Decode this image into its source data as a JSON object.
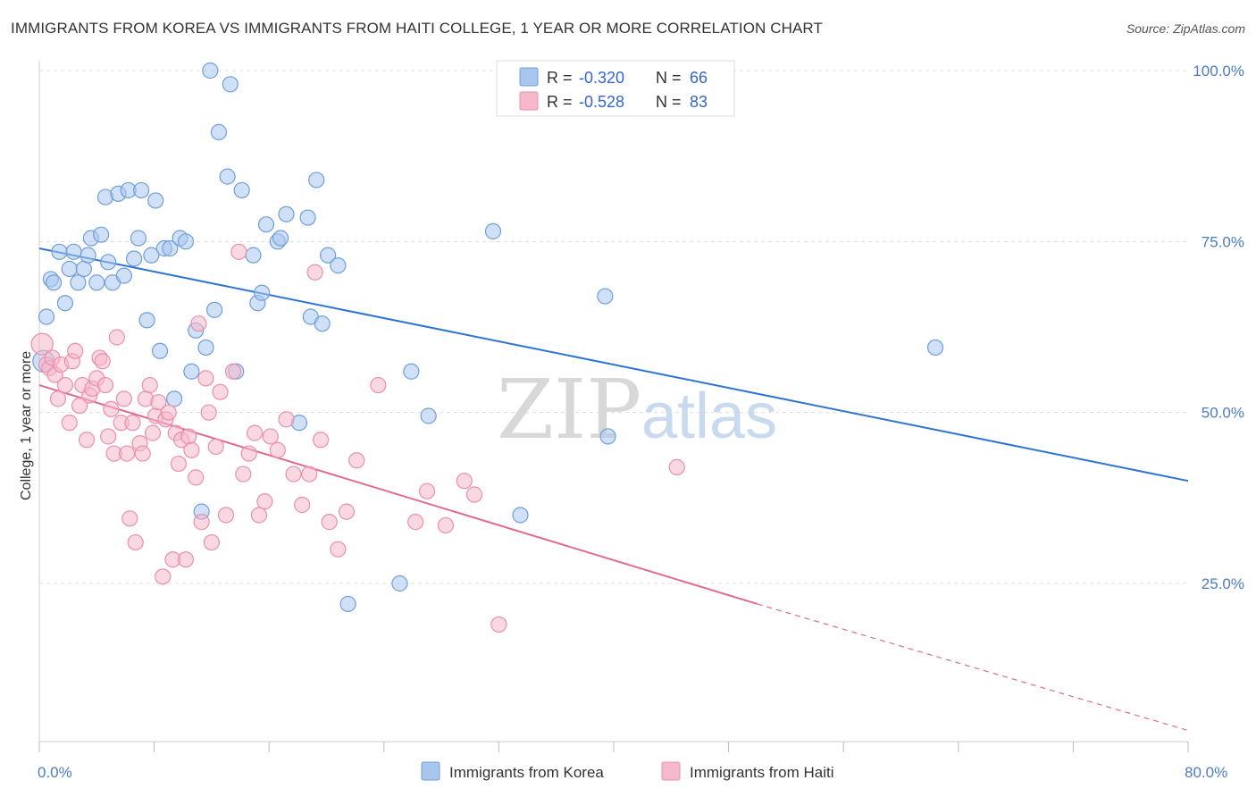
{
  "title": "IMMIGRANTS FROM KOREA VS IMMIGRANTS FROM HAITI COLLEGE, 1 YEAR OR MORE CORRELATION CHART",
  "source": "Source: ZipAtlas.com",
  "watermark": {
    "zip": "ZIP",
    "atlas": "atlas"
  },
  "colors": {
    "korea_fill": "#a9c6ef",
    "korea_stroke": "#6f9fd8",
    "korea_line": "#2f74d0",
    "haiti_fill": "#f6b8cb",
    "haiti_stroke": "#ea8fad",
    "haiti_line": "#e06a94",
    "axis_label": "#4a7cc7",
    "grid": "#dddddd"
  },
  "legend": {
    "korea": {
      "r_label": "R = ",
      "r_value": "-0.320",
      "n_label": "N = ",
      "n_value": "66"
    },
    "haiti": {
      "r_label": "R = ",
      "r_value": "-0.528",
      "n_label": "N = ",
      "n_value": "83"
    }
  },
  "chart_data": {
    "type": "scatter",
    "xlabel": "",
    "ylabel": "College, 1 year or more",
    "xlim": [
      0,
      80
    ],
    "ylim": [
      0,
      105
    ],
    "x_tick_labels": [
      "0.0%",
      "80.0%"
    ],
    "y_ticks": [
      25,
      50,
      75,
      100
    ],
    "y_tick_labels": [
      "25.0%",
      "50.0%",
      "75.0%",
      "100.0%"
    ],
    "grid": true,
    "series": [
      {
        "name": "Immigrants from Korea",
        "trend": {
          "x0": 0,
          "y0": 74.0,
          "x1": 80,
          "y1": 40.0
        },
        "points": [
          [
            0.3,
            57.5
          ],
          [
            0.5,
            64.0
          ],
          [
            0.8,
            69.5
          ],
          [
            1.0,
            69.0
          ],
          [
            1.4,
            73.5
          ],
          [
            1.8,
            66.0
          ],
          [
            2.1,
            71.0
          ],
          [
            2.4,
            73.5
          ],
          [
            2.7,
            69.0
          ],
          [
            3.1,
            71.0
          ],
          [
            3.4,
            73.0
          ],
          [
            3.6,
            75.5
          ],
          [
            4.0,
            69.0
          ],
          [
            4.3,
            76.0
          ],
          [
            4.6,
            81.5
          ],
          [
            4.8,
            72.0
          ],
          [
            5.1,
            69.0
          ],
          [
            5.5,
            82.0
          ],
          [
            5.9,
            70.0
          ],
          [
            6.2,
            82.5
          ],
          [
            6.6,
            72.5
          ],
          [
            6.9,
            75.5
          ],
          [
            7.1,
            82.5
          ],
          [
            7.5,
            63.5
          ],
          [
            7.8,
            73.0
          ],
          [
            8.1,
            81.0
          ],
          [
            8.4,
            59.0
          ],
          [
            8.7,
            74.0
          ],
          [
            9.1,
            74.0
          ],
          [
            9.4,
            52.0
          ],
          [
            9.8,
            75.5
          ],
          [
            10.2,
            75.0
          ],
          [
            10.6,
            56.0
          ],
          [
            10.9,
            62.0
          ],
          [
            11.3,
            35.5
          ],
          [
            11.6,
            59.5
          ],
          [
            11.9,
            100.0
          ],
          [
            12.2,
            65.0
          ],
          [
            12.5,
            91.0
          ],
          [
            13.1,
            84.5
          ],
          [
            13.3,
            98.0
          ],
          [
            13.7,
            56.0
          ],
          [
            14.1,
            82.5
          ],
          [
            14.9,
            73.0
          ],
          [
            15.2,
            66.0
          ],
          [
            15.5,
            67.5
          ],
          [
            15.8,
            77.5
          ],
          [
            16.6,
            75.0
          ],
          [
            16.8,
            75.5
          ],
          [
            17.2,
            79.0
          ],
          [
            18.1,
            48.5
          ],
          [
            18.7,
            78.5
          ],
          [
            18.9,
            64.0
          ],
          [
            19.3,
            84.0
          ],
          [
            19.7,
            63.0
          ],
          [
            20.1,
            73.0
          ],
          [
            20.8,
            71.5
          ],
          [
            21.5,
            22.0
          ],
          [
            25.1,
            25.0
          ],
          [
            25.9,
            56.0
          ],
          [
            27.1,
            49.5
          ],
          [
            31.6,
            76.5
          ],
          [
            33.5,
            35.0
          ],
          [
            39.4,
            67.0
          ],
          [
            39.6,
            46.5
          ],
          [
            62.4,
            59.5
          ]
        ]
      },
      {
        "name": "Immigrants from Haiti",
        "trend": {
          "x0": 0,
          "y0": 54.0,
          "x1": 50,
          "y1": 22.0,
          "dash_x1": 80,
          "dash_y1": 3.5
        },
        "points": [
          [
            0.2,
            60.0
          ],
          [
            0.5,
            57.0
          ],
          [
            0.7,
            56.5
          ],
          [
            0.9,
            58.0
          ],
          [
            1.1,
            55.5
          ],
          [
            1.3,
            52.0
          ],
          [
            1.5,
            57.0
          ],
          [
            1.8,
            54.0
          ],
          [
            2.1,
            48.5
          ],
          [
            2.3,
            57.5
          ],
          [
            2.5,
            59.0
          ],
          [
            2.8,
            51.0
          ],
          [
            3.0,
            54.0
          ],
          [
            3.3,
            46.0
          ],
          [
            3.5,
            52.5
          ],
          [
            3.7,
            53.5
          ],
          [
            4.0,
            55.0
          ],
          [
            4.2,
            58.0
          ],
          [
            4.4,
            57.5
          ],
          [
            4.6,
            54.0
          ],
          [
            4.8,
            46.5
          ],
          [
            5.0,
            50.5
          ],
          [
            5.2,
            44.0
          ],
          [
            5.4,
            61.0
          ],
          [
            5.7,
            48.5
          ],
          [
            5.9,
            52.0
          ],
          [
            6.1,
            44.0
          ],
          [
            6.3,
            34.5
          ],
          [
            6.5,
            48.5
          ],
          [
            6.7,
            31.0
          ],
          [
            7.0,
            45.5
          ],
          [
            7.2,
            44.0
          ],
          [
            7.4,
            52.0
          ],
          [
            7.7,
            54.0
          ],
          [
            7.9,
            47.0
          ],
          [
            8.1,
            49.5
          ],
          [
            8.3,
            51.5
          ],
          [
            8.6,
            26.0
          ],
          [
            8.8,
            49.0
          ],
          [
            9.0,
            50.0
          ],
          [
            9.3,
            28.5
          ],
          [
            9.5,
            47.0
          ],
          [
            9.7,
            42.5
          ],
          [
            9.9,
            46.0
          ],
          [
            10.2,
            28.5
          ],
          [
            10.4,
            46.5
          ],
          [
            10.6,
            44.5
          ],
          [
            10.9,
            40.5
          ],
          [
            11.1,
            63.0
          ],
          [
            11.3,
            34.0
          ],
          [
            11.6,
            55.0
          ],
          [
            11.8,
            50.0
          ],
          [
            12.0,
            31.0
          ],
          [
            12.3,
            45.0
          ],
          [
            12.6,
            53.0
          ],
          [
            13.0,
            35.0
          ],
          [
            13.5,
            56.0
          ],
          [
            13.9,
            73.5
          ],
          [
            14.2,
            41.0
          ],
          [
            14.6,
            44.0
          ],
          [
            15.0,
            47.0
          ],
          [
            15.3,
            35.0
          ],
          [
            15.7,
            37.0
          ],
          [
            16.1,
            46.5
          ],
          [
            16.6,
            44.5
          ],
          [
            17.2,
            49.0
          ],
          [
            17.7,
            41.0
          ],
          [
            18.3,
            36.5
          ],
          [
            18.8,
            41.0
          ],
          [
            19.2,
            70.5
          ],
          [
            19.6,
            46.0
          ],
          [
            20.2,
            34.0
          ],
          [
            20.8,
            30.0
          ],
          [
            21.4,
            35.5
          ],
          [
            22.1,
            43.0
          ],
          [
            23.6,
            54.0
          ],
          [
            26.2,
            34.0
          ],
          [
            27.0,
            38.5
          ],
          [
            28.3,
            33.5
          ],
          [
            29.6,
            40.0
          ],
          [
            30.3,
            38.0
          ],
          [
            32.0,
            19.0
          ],
          [
            44.4,
            42.0
          ]
        ]
      }
    ],
    "point_sizes_note": "uniform markers; first points slightly larger"
  },
  "bottom_legend": {
    "korea": "Immigrants from Korea",
    "haiti": "Immigrants from Haiti"
  }
}
